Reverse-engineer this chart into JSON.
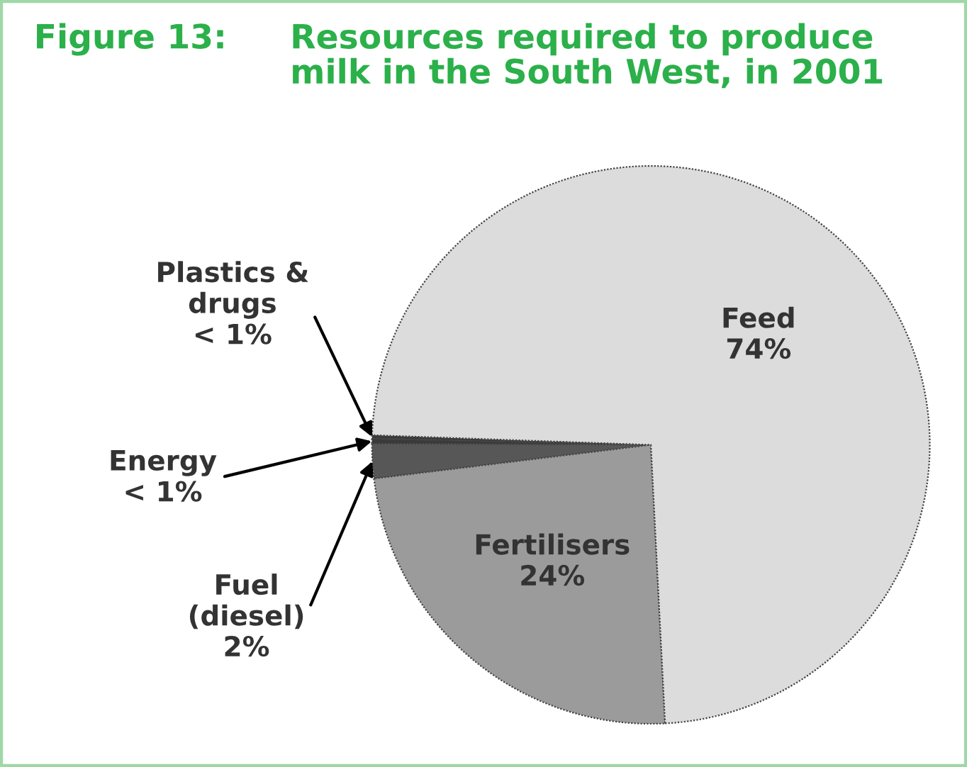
{
  "chart_data": {
    "type": "pie",
    "title": "Resources required to produce\nmilk in the South West, in 2001",
    "annotations": [
      "Figure 13:"
    ],
    "categories": [
      "Plastics &\ndrugs",
      "Energy",
      "Fuel\n(diesel)",
      "Fertilisers",
      "Feed"
    ],
    "values": [
      0.2,
      0.3,
      2,
      24,
      74
    ],
    "value_labels": [
      "< 1%",
      "< 1%",
      "2%",
      "24%",
      "74%"
    ],
    "colors": [
      "#3a3a3a",
      "#3a3a3a",
      "#575757",
      "#9b9b9b",
      "#dcdcdc"
    ],
    "legend": false
  }
}
